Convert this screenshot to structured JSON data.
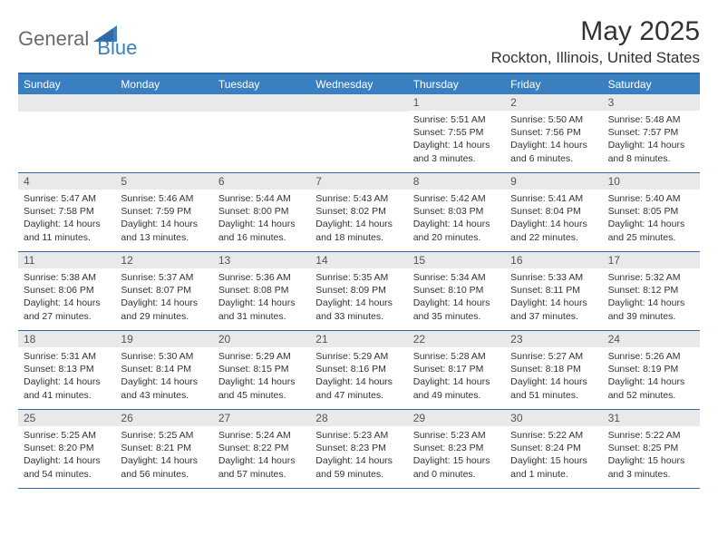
{
  "logo": {
    "general": "General",
    "blue": "Blue"
  },
  "header": {
    "month_title": "May 2025",
    "location": "Rockton, Illinois, United States"
  },
  "weekdays": [
    "Sunday",
    "Monday",
    "Tuesday",
    "Wednesday",
    "Thursday",
    "Friday",
    "Saturday"
  ],
  "colors": {
    "header_bar": "#3a80c0",
    "border": "#2f6aa3",
    "day_number_bg": "#e7e9eb"
  },
  "blank_days_start": 4,
  "days": [
    {
      "n": "1",
      "sunrise": "Sunrise: 5:51 AM",
      "sunset": "Sunset: 7:55 PM",
      "daylight": "Daylight: 14 hours and 3 minutes."
    },
    {
      "n": "2",
      "sunrise": "Sunrise: 5:50 AM",
      "sunset": "Sunset: 7:56 PM",
      "daylight": "Daylight: 14 hours and 6 minutes."
    },
    {
      "n": "3",
      "sunrise": "Sunrise: 5:48 AM",
      "sunset": "Sunset: 7:57 PM",
      "daylight": "Daylight: 14 hours and 8 minutes."
    },
    {
      "n": "4",
      "sunrise": "Sunrise: 5:47 AM",
      "sunset": "Sunset: 7:58 PM",
      "daylight": "Daylight: 14 hours and 11 minutes."
    },
    {
      "n": "5",
      "sunrise": "Sunrise: 5:46 AM",
      "sunset": "Sunset: 7:59 PM",
      "daylight": "Daylight: 14 hours and 13 minutes."
    },
    {
      "n": "6",
      "sunrise": "Sunrise: 5:44 AM",
      "sunset": "Sunset: 8:00 PM",
      "daylight": "Daylight: 14 hours and 16 minutes."
    },
    {
      "n": "7",
      "sunrise": "Sunrise: 5:43 AM",
      "sunset": "Sunset: 8:02 PM",
      "daylight": "Daylight: 14 hours and 18 minutes."
    },
    {
      "n": "8",
      "sunrise": "Sunrise: 5:42 AM",
      "sunset": "Sunset: 8:03 PM",
      "daylight": "Daylight: 14 hours and 20 minutes."
    },
    {
      "n": "9",
      "sunrise": "Sunrise: 5:41 AM",
      "sunset": "Sunset: 8:04 PM",
      "daylight": "Daylight: 14 hours and 22 minutes."
    },
    {
      "n": "10",
      "sunrise": "Sunrise: 5:40 AM",
      "sunset": "Sunset: 8:05 PM",
      "daylight": "Daylight: 14 hours and 25 minutes."
    },
    {
      "n": "11",
      "sunrise": "Sunrise: 5:38 AM",
      "sunset": "Sunset: 8:06 PM",
      "daylight": "Daylight: 14 hours and 27 minutes."
    },
    {
      "n": "12",
      "sunrise": "Sunrise: 5:37 AM",
      "sunset": "Sunset: 8:07 PM",
      "daylight": "Daylight: 14 hours and 29 minutes."
    },
    {
      "n": "13",
      "sunrise": "Sunrise: 5:36 AM",
      "sunset": "Sunset: 8:08 PM",
      "daylight": "Daylight: 14 hours and 31 minutes."
    },
    {
      "n": "14",
      "sunrise": "Sunrise: 5:35 AM",
      "sunset": "Sunset: 8:09 PM",
      "daylight": "Daylight: 14 hours and 33 minutes."
    },
    {
      "n": "15",
      "sunrise": "Sunrise: 5:34 AM",
      "sunset": "Sunset: 8:10 PM",
      "daylight": "Daylight: 14 hours and 35 minutes."
    },
    {
      "n": "16",
      "sunrise": "Sunrise: 5:33 AM",
      "sunset": "Sunset: 8:11 PM",
      "daylight": "Daylight: 14 hours and 37 minutes."
    },
    {
      "n": "17",
      "sunrise": "Sunrise: 5:32 AM",
      "sunset": "Sunset: 8:12 PM",
      "daylight": "Daylight: 14 hours and 39 minutes."
    },
    {
      "n": "18",
      "sunrise": "Sunrise: 5:31 AM",
      "sunset": "Sunset: 8:13 PM",
      "daylight": "Daylight: 14 hours and 41 minutes."
    },
    {
      "n": "19",
      "sunrise": "Sunrise: 5:30 AM",
      "sunset": "Sunset: 8:14 PM",
      "daylight": "Daylight: 14 hours and 43 minutes."
    },
    {
      "n": "20",
      "sunrise": "Sunrise: 5:29 AM",
      "sunset": "Sunset: 8:15 PM",
      "daylight": "Daylight: 14 hours and 45 minutes."
    },
    {
      "n": "21",
      "sunrise": "Sunrise: 5:29 AM",
      "sunset": "Sunset: 8:16 PM",
      "daylight": "Daylight: 14 hours and 47 minutes."
    },
    {
      "n": "22",
      "sunrise": "Sunrise: 5:28 AM",
      "sunset": "Sunset: 8:17 PM",
      "daylight": "Daylight: 14 hours and 49 minutes."
    },
    {
      "n": "23",
      "sunrise": "Sunrise: 5:27 AM",
      "sunset": "Sunset: 8:18 PM",
      "daylight": "Daylight: 14 hours and 51 minutes."
    },
    {
      "n": "24",
      "sunrise": "Sunrise: 5:26 AM",
      "sunset": "Sunset: 8:19 PM",
      "daylight": "Daylight: 14 hours and 52 minutes."
    },
    {
      "n": "25",
      "sunrise": "Sunrise: 5:25 AM",
      "sunset": "Sunset: 8:20 PM",
      "daylight": "Daylight: 14 hours and 54 minutes."
    },
    {
      "n": "26",
      "sunrise": "Sunrise: 5:25 AM",
      "sunset": "Sunset: 8:21 PM",
      "daylight": "Daylight: 14 hours and 56 minutes."
    },
    {
      "n": "27",
      "sunrise": "Sunrise: 5:24 AM",
      "sunset": "Sunset: 8:22 PM",
      "daylight": "Daylight: 14 hours and 57 minutes."
    },
    {
      "n": "28",
      "sunrise": "Sunrise: 5:23 AM",
      "sunset": "Sunset: 8:23 PM",
      "daylight": "Daylight: 14 hours and 59 minutes."
    },
    {
      "n": "29",
      "sunrise": "Sunrise: 5:23 AM",
      "sunset": "Sunset: 8:23 PM",
      "daylight": "Daylight: 15 hours and 0 minutes."
    },
    {
      "n": "30",
      "sunrise": "Sunrise: 5:22 AM",
      "sunset": "Sunset: 8:24 PM",
      "daylight": "Daylight: 15 hours and 1 minute."
    },
    {
      "n": "31",
      "sunrise": "Sunrise: 5:22 AM",
      "sunset": "Sunset: 8:25 PM",
      "daylight": "Daylight: 15 hours and 3 minutes."
    }
  ]
}
